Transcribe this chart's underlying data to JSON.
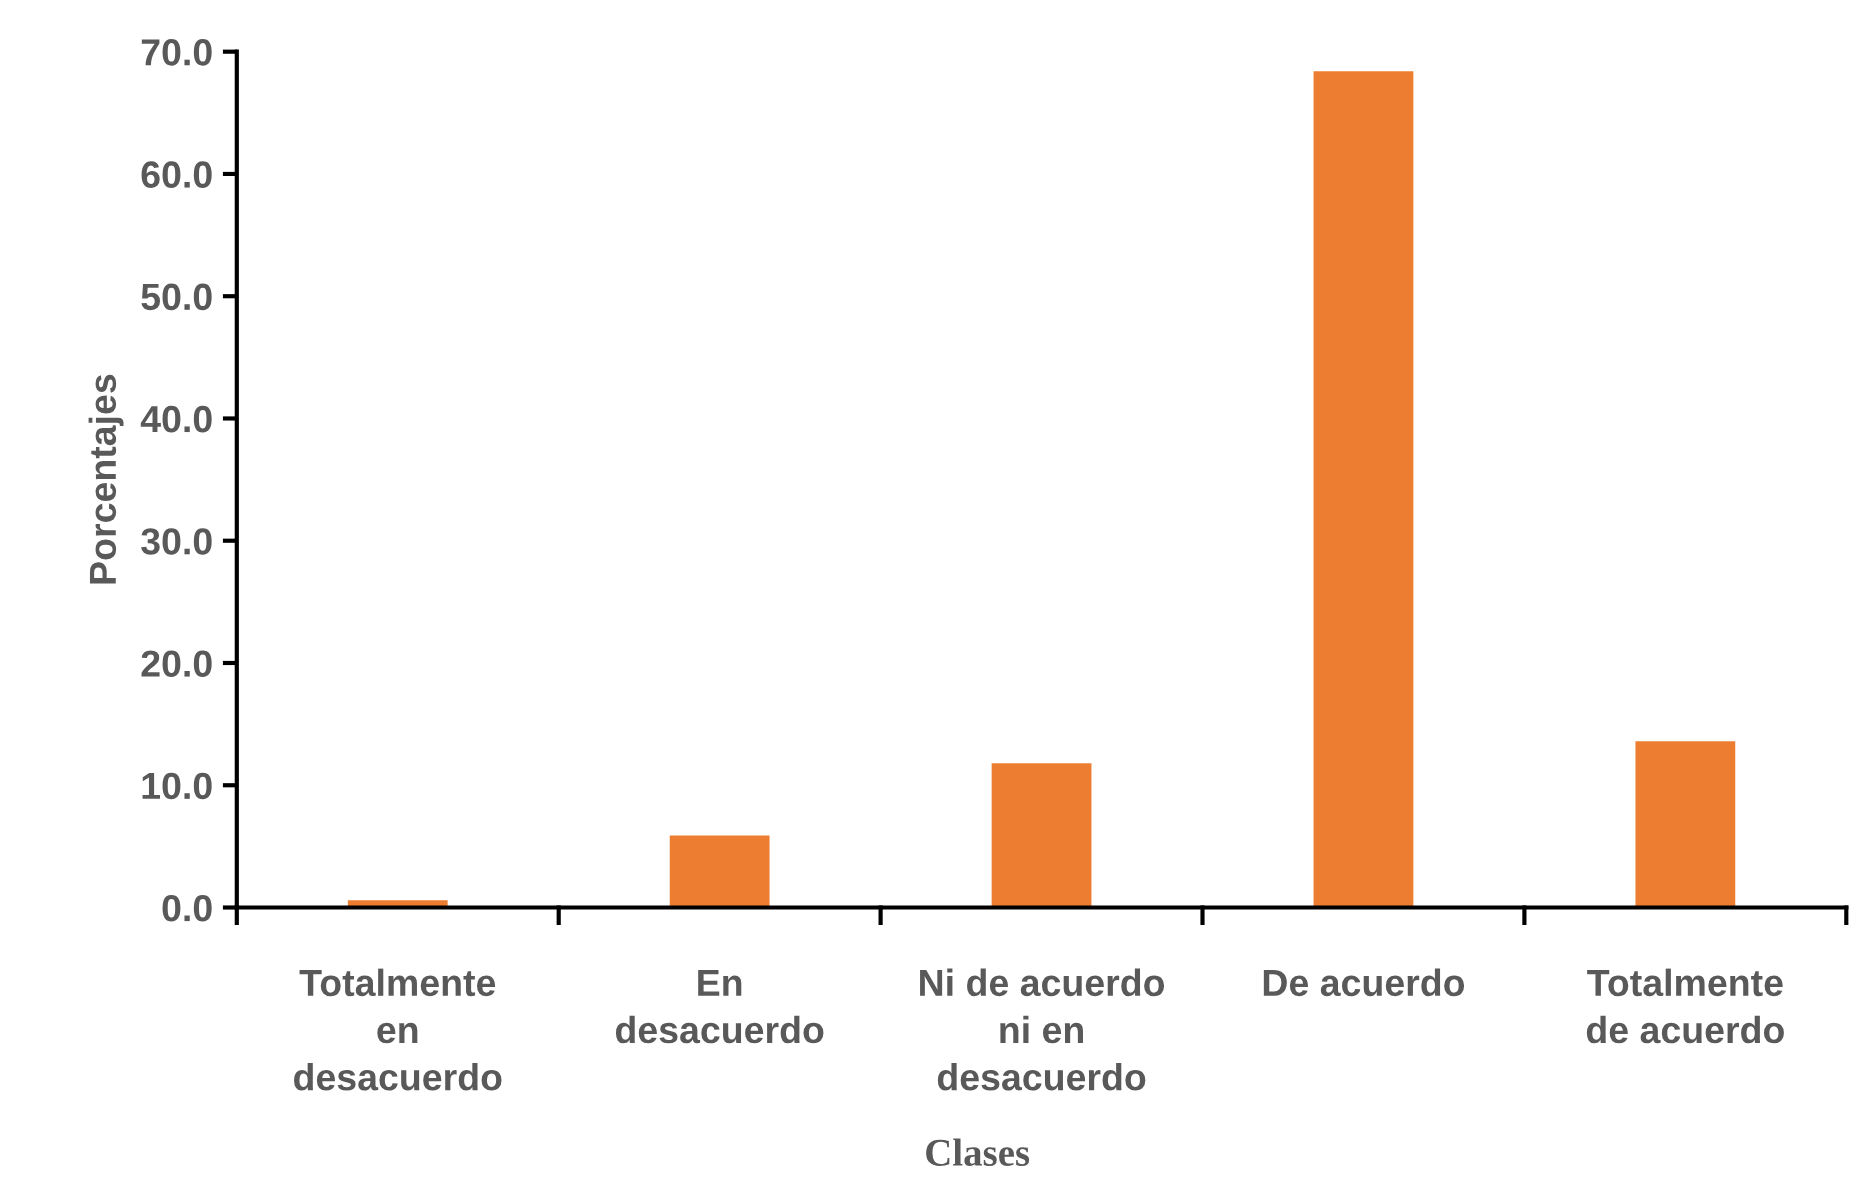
{
  "chart_data": {
    "type": "bar",
    "xlabel": "Clases",
    "ylabel": "Porcentajes",
    "categories": [
      "Totalmente\nen\ndesacuerdo",
      "En\ndesacuerdo",
      "Ni de acuerdo\nni en\ndesacuerdo",
      "De acuerdo",
      "Totalmente\nde acuerdo"
    ],
    "values": [
      0.6,
      5.9,
      11.8,
      68.4,
      13.6
    ],
    "color": "#ed7d31",
    "ylim": [
      0,
      70
    ],
    "yticks": [
      {
        "value": 0,
        "label": "0.0"
      },
      {
        "value": 10,
        "label": "10.0"
      },
      {
        "value": 20,
        "label": "20.0"
      },
      {
        "value": 30,
        "label": "30.0"
      },
      {
        "value": 40,
        "label": "40.0"
      },
      {
        "value": 50,
        "label": "50.0"
      },
      {
        "value": 60,
        "label": "60.0"
      },
      {
        "value": 70,
        "label": "70.0"
      }
    ],
    "grid": false,
    "legend": false
  }
}
